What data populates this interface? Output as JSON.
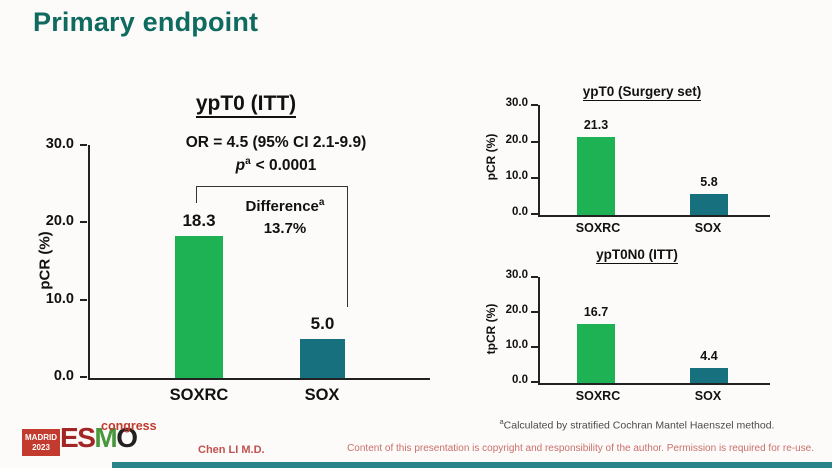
{
  "slide": {
    "title": "Primary endpoint"
  },
  "colors": {
    "title_teal": "#0f6a60",
    "soxrc_green": "#1fb254",
    "sox_teal": "#16707e",
    "logo_box_red": "#c23b2e",
    "esmo_red": "#a32524",
    "esmo_green": "#47973b",
    "esmo_dark": "#232021",
    "congress_red": "#c23b2e",
    "footer_red": "#c0524f",
    "copyright_red": "#c9706b",
    "footnote_gray": "#4a4a4a",
    "bottom_bar_teal": "#2b8488"
  },
  "chart_data": [
    {
      "type": "bar",
      "title": "ypT0 (ITT)",
      "ylabel": "pCR (%)",
      "ylim": [
        0,
        30
      ],
      "yticks": [
        "30.0",
        "20.0",
        "10.0",
        "0.0"
      ],
      "categories": [
        "SOXRC",
        "SOX"
      ],
      "values": [
        18.3,
        5.0
      ],
      "value_labels": [
        "18.3",
        "5.0"
      ],
      "bar_colors": [
        "#1fb254",
        "#16707e"
      ],
      "grid": false,
      "legend": "none",
      "annotations": {
        "or_line": "OR = 4.5 (95% CI 2.1-9.9)",
        "p_italic": "p",
        "p_sup": "a",
        "p_rest": "< 0.0001",
        "difference_label": "Difference",
        "difference_sup": "a",
        "difference_value": "13.7%"
      }
    },
    {
      "type": "bar",
      "title": "ypT0 (Surgery set)",
      "ylabel": "pCR (%)",
      "ylim": [
        0,
        30
      ],
      "yticks": [
        "30.0",
        "20.0",
        "10.0",
        "0.0"
      ],
      "categories": [
        "SOXRC",
        "SOX"
      ],
      "values": [
        21.3,
        5.8
      ],
      "value_labels": [
        "21.3",
        "5.8"
      ],
      "bar_colors": [
        "#1fb254",
        "#16707e"
      ],
      "grid": false,
      "legend": "none"
    },
    {
      "type": "bar",
      "title": "ypT0N0 (ITT)",
      "ylabel": "tpCR (%)",
      "ylim": [
        0,
        30
      ],
      "yticks": [
        "30.0",
        "20.0",
        "10.0",
        "0.0"
      ],
      "categories": [
        "SOXRC",
        "SOX"
      ],
      "values": [
        16.7,
        4.4
      ],
      "value_labels": [
        "16.7",
        "4.4"
      ],
      "bar_colors": [
        "#1fb254",
        "#16707e"
      ],
      "grid": false,
      "legend": "none"
    }
  ],
  "footnote": {
    "sup": "a",
    "text": "Calculated by stratified Cochran Mantel Haenszel method."
  },
  "footer": {
    "logo": {
      "city": "MADRID",
      "year": "2023",
      "letters": [
        "E",
        "S",
        "M",
        "O"
      ],
      "congress": "congress"
    },
    "author": "Chen LI M.D.",
    "copyright": "Content of this presentation is copyright and responsibility of the author. Permission is required for re-use."
  }
}
